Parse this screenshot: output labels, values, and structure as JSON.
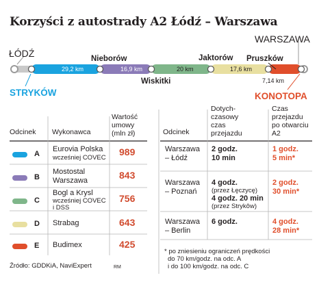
{
  "title": "Korzyści z autostrady A2 Łódź – Warszawa",
  "route": {
    "start": "ŁÓDŹ",
    "end": "WARSZAWA",
    "stops_above": [
      "Nieborów",
      "Jaktorów",
      "Pruszków"
    ],
    "stops_below": [
      "STRYKÓW",
      "Wiskitki",
      "KONOTOPA"
    ],
    "segments": [
      {
        "label": "29,2 km",
        "color": "#1aa3df"
      },
      {
        "label": "16,9 km",
        "color": "#8b7bb8"
      },
      {
        "label": "20 km",
        "color": "#7fb68a"
      },
      {
        "label": "17,6 km",
        "color": "#e8dfa0"
      },
      {
        "label": "7,14 km",
        "color": "#e04e2b"
      }
    ]
  },
  "left_table": {
    "headers": {
      "section": "Odcinek",
      "contractor": "Wykonawca",
      "value": "Wartość umowy (mln zł)"
    },
    "rows": [
      {
        "letter": "A",
        "color": "#1aa3df",
        "line1": "Eurovia Polska",
        "line2": "wcześniej COVEC",
        "value": "989"
      },
      {
        "letter": "B",
        "color": "#8b7bb8",
        "line1": "Mostostal",
        "line2": "Warszawa",
        "value": "843"
      },
      {
        "letter": "C",
        "color": "#7fb68a",
        "line1": "Bogl a Krysl",
        "line2": "wcześniej COVEC",
        "line3": "i DSS",
        "value": "756"
      },
      {
        "letter": "D",
        "color": "#e8dfa0",
        "line1": "Strabag",
        "value": "643"
      },
      {
        "letter": "E",
        "color": "#e04e2b",
        "line1": "Budimex",
        "value": "425"
      }
    ]
  },
  "right_table": {
    "headers": {
      "section": "Odcinek",
      "before": "Dotych-czasowy czas przejazdu",
      "after": "Czas przejazdu po otwarciu A2"
    },
    "rows": [
      {
        "route1": "Warszawa",
        "route2": "– Łódź",
        "before1": "2 godz.",
        "before2": "10 min",
        "after1": "1 godz.",
        "after2": "5 min*"
      },
      {
        "route1": "Warszawa",
        "route2": "– Poznań",
        "before1": "4 godz.",
        "before_note1": "(przez Łęczycę)",
        "before3": "4 godz. 20 min",
        "before_note2": "(przez Strykôw)",
        "after1": "2 godz.",
        "after2": "30 min*"
      },
      {
        "route1": "Warszawa",
        "route2": "– Berlin",
        "before1": "6 godz.",
        "after1": "4 godz.",
        "after2": "28 min*"
      }
    ]
  },
  "footnote": [
    "* po zniesieniu ograniczeń prędkości",
    "do 70 km/godz. na odc. A",
    "i do 100 km/godz. na odc. C"
  ],
  "source": "Źródło: GDDKiA, NaviExpert",
  "signature": "RM",
  "chart_data": {
    "type": "table",
    "title": "Korzyści z autostrady A2 Łódź – Warszawa",
    "categories": [
      "A",
      "B",
      "C",
      "D",
      "E"
    ],
    "series": [
      {
        "name": "Wartość umowy (mln zł)",
        "values": [
          989,
          843,
          756,
          643,
          425
        ]
      }
    ],
    "segment_lengths_km": [
      29.2,
      16.9,
      20,
      17.6,
      7.14
    ]
  }
}
